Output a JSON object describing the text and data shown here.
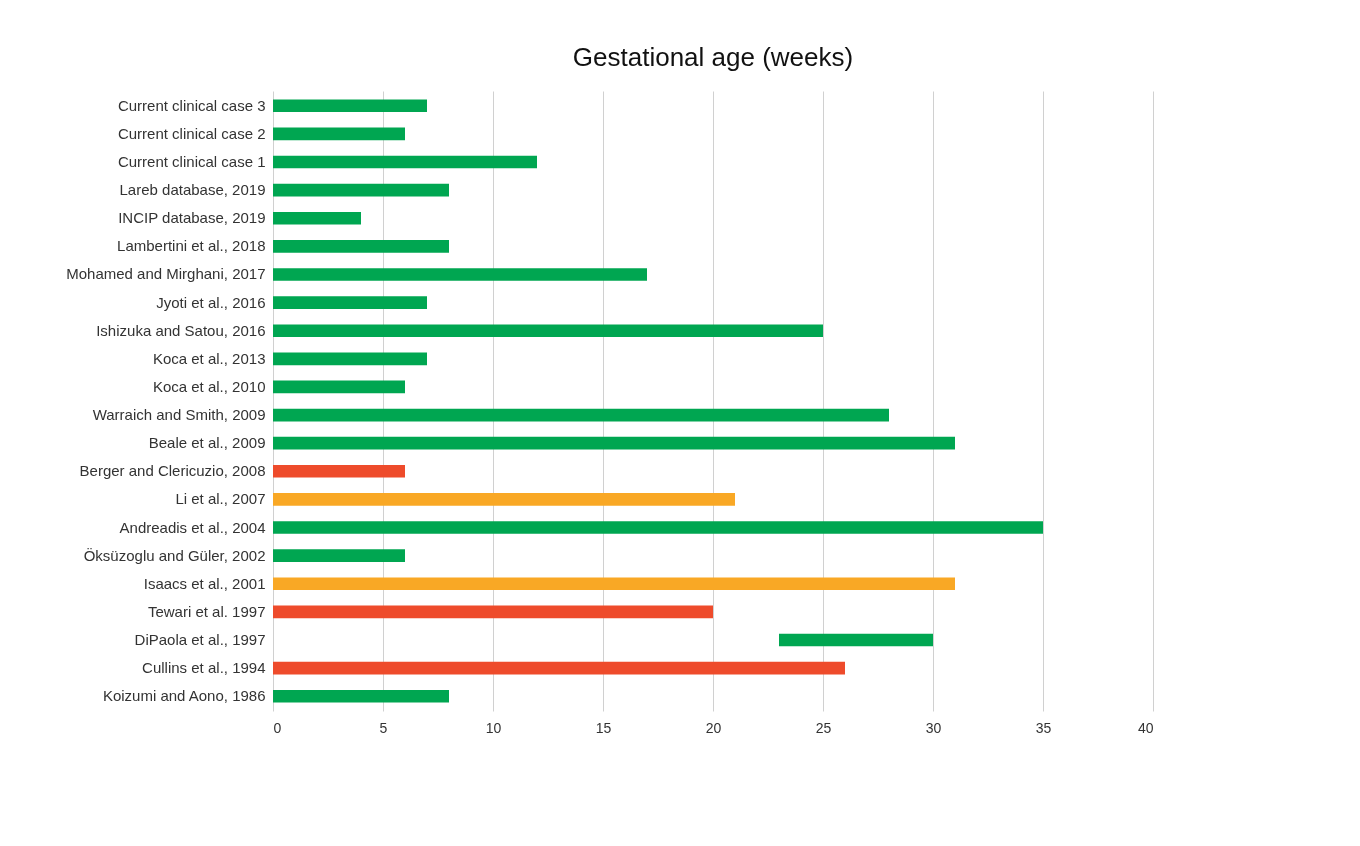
{
  "chart_data": {
    "type": "bar",
    "orientation": "horizontal",
    "title": "Gestational age (weeks)",
    "categories": [
      "Current clinical case 3",
      "Current clinical case 2",
      "Current clinical case 1",
      "Lareb database, 2019",
      "INCIP database, 2019",
      "Lambertini et al., 2018",
      "Mohamed and Mirghani, 2017",
      "Jyoti et al., 2016",
      "Ishizuka and Satou, 2016",
      "Koca et al., 2013",
      "Koca et al., 2010",
      "Warraich and Smith, 2009",
      "Beale et al., 2009",
      "Berger and Clericuzio, 2008",
      "Li et al., 2007",
      "Andreadis et al., 2004",
      "Öksüzoglu and Güler, 2002",
      "Isaacs et al., 2001",
      "Tewari et al. 1997",
      "DiPaola et al., 1997",
      "Cullins et al., 1994",
      "Koizumi and Aono, 1986"
    ],
    "values": [
      7,
      6,
      12,
      8,
      4,
      8,
      17,
      7,
      25,
      7,
      6,
      28,
      31,
      6,
      21,
      35,
      6,
      31,
      20,
      7,
      26,
      8
    ],
    "base": [
      0,
      0,
      0,
      0,
      0,
      0,
      0,
      0,
      0,
      0,
      0,
      0,
      0,
      0,
      0,
      0,
      0,
      0,
      0,
      23,
      0,
      0
    ],
    "colors": [
      "#00a651",
      "#00a651",
      "#00a651",
      "#00a651",
      "#00a651",
      "#00a651",
      "#00a651",
      "#00a651",
      "#00a651",
      "#00a651",
      "#00a651",
      "#00a651",
      "#00a651",
      "#ee4b2b",
      "#f9a825",
      "#00a651",
      "#00a651",
      "#f9a825",
      "#ee4b2b",
      "#00a651",
      "#ee4b2b",
      "#00a651"
    ],
    "xlim": [
      0,
      40
    ],
    "xticks": [
      0,
      5,
      10,
      15,
      20,
      25,
      30,
      35,
      40
    ],
    "grid": "x"
  }
}
